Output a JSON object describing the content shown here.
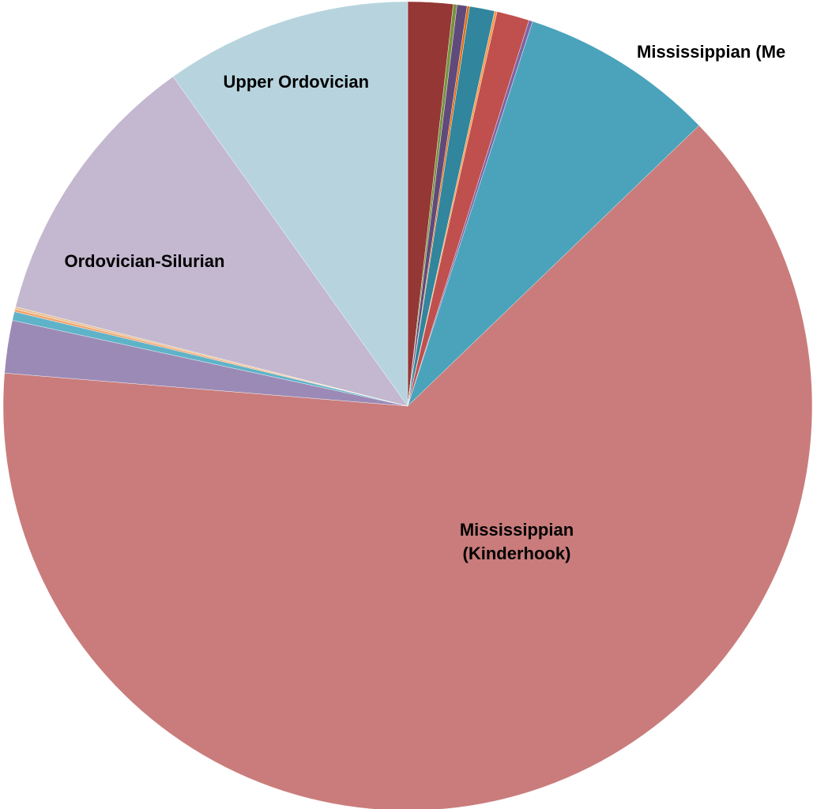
{
  "chart_data": {
    "type": "pie",
    "categories": [
      null,
      null,
      null,
      null,
      null,
      null,
      null,
      null,
      "Mississippian (Me",
      "Mississippian (Kinderhook)",
      null,
      null,
      null,
      null,
      "Ordovician-Silurian",
      "Upper Ordovician"
    ],
    "values": [
      1.8,
      0.15,
      0.4,
      0.1,
      1.0,
      0.1,
      1.3,
      0.15,
      7.8,
      63.5,
      2.1,
      0.35,
      0.1,
      0.1,
      11.2,
      9.85
    ],
    "colors": [
      "#953735",
      "#77933c",
      "#604a7b",
      "#e46c0a",
      "#31859c",
      "#f79646",
      "#c0504d",
      "#8064a2",
      "#4aa3bb",
      "#c97c7b",
      "#9b8ab6",
      "#5fb3c8",
      "#f2a26a",
      "#e8c39a",
      "#c3b8cf",
      "#b7d4de"
    ]
  }
}
